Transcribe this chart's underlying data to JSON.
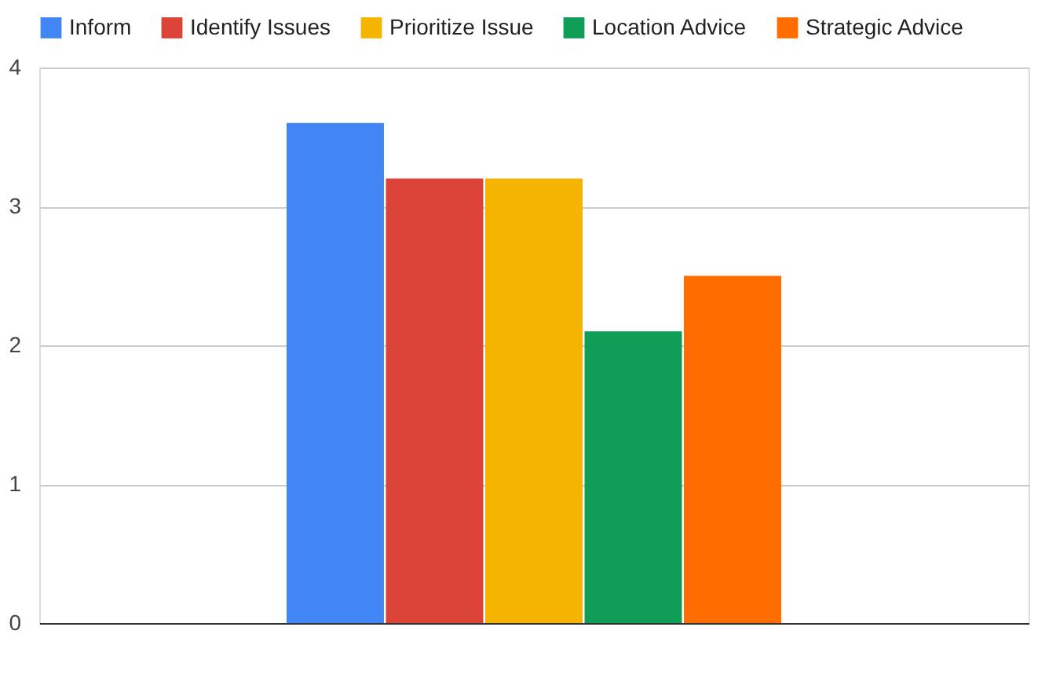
{
  "chart_data": {
    "type": "bar",
    "categories": [
      null
    ],
    "series": [
      {
        "name": "Inform",
        "color": "#4285f4",
        "values": [
          3.6
        ]
      },
      {
        "name": "Identify Issues",
        "color": "#db4437",
        "values": [
          3.2
        ]
      },
      {
        "name": "Prioritize Issue",
        "color": "#f4b400",
        "values": [
          3.2
        ]
      },
      {
        "name": "Location Advice",
        "color": "#0f9d58",
        "values": [
          2.1
        ]
      },
      {
        "name": "Strategic Advice",
        "color": "#ff6d00",
        "values": [
          2.5
        ]
      }
    ],
    "ylim": [
      0,
      4
    ],
    "yticks": [
      0,
      1,
      2,
      3,
      4
    ],
    "grid": "y",
    "legend": "top"
  }
}
